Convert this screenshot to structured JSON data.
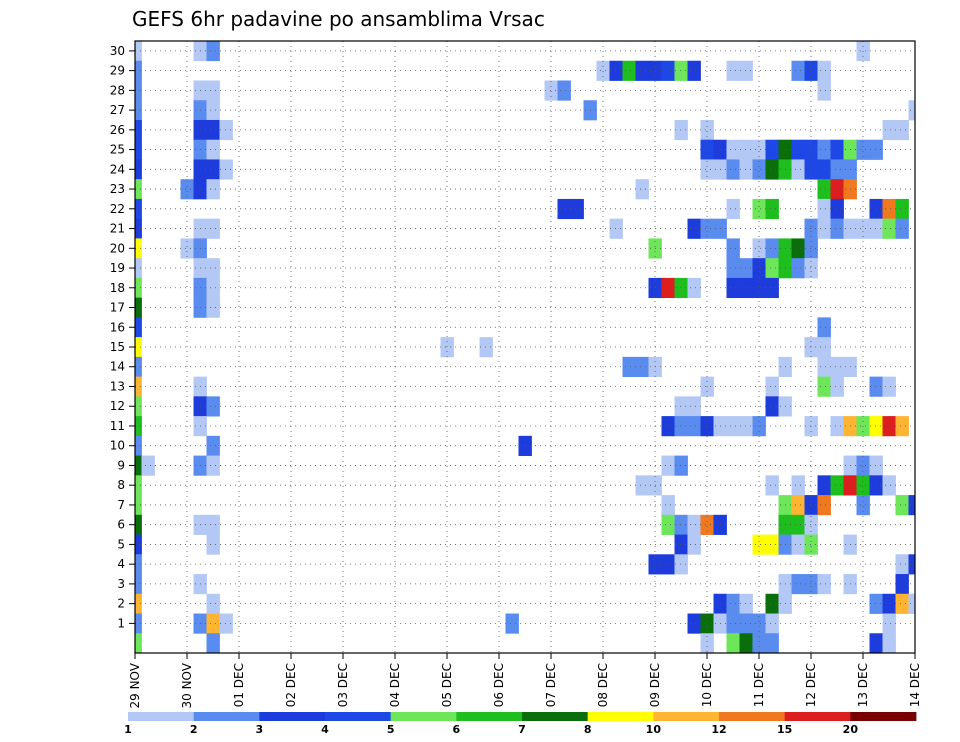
{
  "chart_data": {
    "type": "heatmap",
    "title": "GEFS 6hr padavine po ansamblima Vrsac",
    "x_tick_labels": [
      "29 NOV",
      "30 NOV",
      "01 DEC",
      "02 DEC",
      "03 DEC",
      "04 DEC",
      "05 DEC",
      "06 DEC",
      "07 DEC",
      "08 DEC",
      "09 DEC",
      "10 DEC",
      "11 DEC",
      "12 DEC",
      "13 DEC",
      "14 DEC"
    ],
    "y_tick_labels": [
      "1",
      "2",
      "3",
      "4",
      "5",
      "6",
      "7",
      "8",
      "9",
      "10",
      "11",
      "12",
      "13",
      "14",
      "15",
      "16",
      "17",
      "18",
      "19",
      "20",
      "21",
      "22",
      "23",
      "24",
      "25",
      "26",
      "27",
      "28",
      "29",
      "30"
    ],
    "ensemble_members": [
      0,
      30
    ],
    "time_steps_6h": 61,
    "colorbar": {
      "labels": [
        "1",
        "2",
        "3",
        "4",
        "5",
        "6",
        "7",
        "8",
        "10",
        "12",
        "15",
        "20"
      ],
      "colors": [
        "#b4c8f5",
        "#5a8cf0",
        "#1e3cdc",
        "#1e48e6",
        "#6ee65a",
        "#1ebe1e",
        "#0a6e0a",
        "#ffff00",
        "#ffb432",
        "#f0781e",
        "#dc1e1e",
        "#780000"
      ]
    },
    "grid": true,
    "cells": [
      {
        "m": 30,
        "t": [
          [
            0,
            1
          ],
          [
            5,
            1
          ],
          [
            6,
            2
          ],
          [
            56,
            1
          ]
        ]
      },
      {
        "m": 29,
        "t": [
          [
            0,
            2
          ],
          [
            36,
            1
          ],
          [
            37,
            3
          ],
          [
            38,
            6
          ],
          [
            39,
            3
          ],
          [
            40,
            3
          ],
          [
            41,
            4
          ],
          [
            42,
            5
          ],
          [
            43,
            3
          ],
          [
            46,
            1
          ],
          [
            47,
            1
          ],
          [
            51,
            2
          ],
          [
            52,
            4
          ],
          [
            53,
            1
          ]
        ]
      },
      {
        "m": 28,
        "t": [
          [
            0,
            2
          ],
          [
            5,
            1
          ],
          [
            6,
            1
          ],
          [
            32,
            1
          ],
          [
            33,
            2
          ],
          [
            53,
            1
          ]
        ]
      },
      {
        "m": 27,
        "t": [
          [
            0,
            2
          ],
          [
            5,
            2
          ],
          [
            6,
            1
          ],
          [
            35,
            2
          ],
          [
            60,
            1
          ]
        ]
      },
      {
        "m": 26,
        "t": [
          [
            0,
            4
          ],
          [
            5,
            3
          ],
          [
            6,
            3
          ],
          [
            7,
            1
          ],
          [
            42,
            1
          ],
          [
            44,
            1
          ],
          [
            58,
            1
          ],
          [
            59,
            1
          ]
        ]
      },
      {
        "m": 25,
        "t": [
          [
            0,
            4
          ],
          [
            5,
            2
          ],
          [
            6,
            1
          ],
          [
            44,
            4
          ],
          [
            45,
            3
          ],
          [
            46,
            1
          ],
          [
            47,
            1
          ],
          [
            48,
            1
          ],
          [
            49,
            4
          ],
          [
            50,
            7
          ],
          [
            51,
            4
          ],
          [
            52,
            4
          ],
          [
            53,
            2
          ],
          [
            54,
            4
          ],
          [
            55,
            5
          ],
          [
            56,
            2
          ],
          [
            57,
            2
          ]
        ]
      },
      {
        "m": 24,
        "t": [
          [
            0,
            3
          ],
          [
            5,
            3
          ],
          [
            6,
            3
          ],
          [
            7,
            1
          ],
          [
            44,
            1
          ],
          [
            45,
            1
          ],
          [
            46,
            2
          ],
          [
            47,
            1
          ],
          [
            48,
            2
          ],
          [
            49,
            7
          ],
          [
            50,
            6
          ],
          [
            51,
            1
          ],
          [
            52,
            4
          ],
          [
            53,
            4
          ],
          [
            54,
            2
          ],
          [
            55,
            2
          ]
        ]
      },
      {
        "m": 23,
        "t": [
          [
            0,
            5
          ],
          [
            4,
            2
          ],
          [
            5,
            3
          ],
          [
            6,
            1
          ],
          [
            39,
            1
          ],
          [
            53,
            6
          ],
          [
            54,
            11
          ],
          [
            55,
            10
          ]
        ]
      },
      {
        "m": 22,
        "t": [
          [
            0,
            4
          ],
          [
            33,
            3
          ],
          [
            34,
            3
          ],
          [
            46,
            1
          ],
          [
            48,
            5
          ],
          [
            49,
            6
          ],
          [
            53,
            1
          ],
          [
            54,
            3
          ],
          [
            57,
            3
          ],
          [
            58,
            10
          ],
          [
            59,
            6
          ]
        ]
      },
      {
        "m": 21,
        "t": [
          [
            0,
            3
          ],
          [
            5,
            1
          ],
          [
            6,
            1
          ],
          [
            37,
            1
          ],
          [
            43,
            3
          ],
          [
            44,
            2
          ],
          [
            45,
            2
          ],
          [
            52,
            2
          ],
          [
            53,
            1
          ],
          [
            54,
            2
          ],
          [
            55,
            1
          ],
          [
            56,
            1
          ],
          [
            57,
            1
          ],
          [
            58,
            5
          ],
          [
            59,
            2
          ]
        ]
      },
      {
        "m": 20,
        "t": [
          [
            0,
            8
          ],
          [
            4,
            1
          ],
          [
            5,
            2
          ],
          [
            40,
            5
          ],
          [
            46,
            2
          ],
          [
            48,
            1
          ],
          [
            49,
            2
          ],
          [
            50,
            6
          ],
          [
            51,
            7
          ],
          [
            52,
            2
          ]
        ]
      },
      {
        "m": 19,
        "t": [
          [
            0,
            1
          ],
          [
            5,
            1
          ],
          [
            6,
            1
          ],
          [
            46,
            2
          ],
          [
            47,
            2
          ],
          [
            48,
            3
          ],
          [
            49,
            5
          ],
          [
            50,
            6
          ],
          [
            51,
            2
          ],
          [
            52,
            1
          ]
        ]
      },
      {
        "m": 18,
        "t": [
          [
            0,
            5
          ],
          [
            5,
            2
          ],
          [
            6,
            1
          ],
          [
            40,
            3
          ],
          [
            41,
            11
          ],
          [
            42,
            6
          ],
          [
            43,
            1
          ],
          [
            46,
            3
          ],
          [
            47,
            3
          ],
          [
            48,
            3
          ],
          [
            49,
            3
          ]
        ]
      },
      {
        "m": 17,
        "t": [
          [
            0,
            7
          ],
          [
            5,
            2
          ],
          [
            6,
            1
          ]
        ]
      },
      {
        "m": 16,
        "t": [
          [
            0,
            4
          ],
          [
            53,
            2
          ]
        ]
      },
      {
        "m": 15,
        "t": [
          [
            0,
            8
          ],
          [
            24,
            1
          ],
          [
            27,
            1
          ],
          [
            52,
            1
          ],
          [
            53,
            1
          ]
        ]
      },
      {
        "m": 14,
        "t": [
          [
            0,
            2
          ],
          [
            38,
            2
          ],
          [
            39,
            2
          ],
          [
            40,
            1
          ],
          [
            50,
            1
          ],
          [
            53,
            1
          ],
          [
            54,
            1
          ],
          [
            55,
            1
          ]
        ]
      },
      {
        "m": 13,
        "t": [
          [
            0,
            9
          ],
          [
            5,
            1
          ],
          [
            44,
            1
          ],
          [
            49,
            1
          ],
          [
            53,
            5
          ],
          [
            54,
            1
          ],
          [
            57,
            2
          ],
          [
            58,
            1
          ]
        ]
      },
      {
        "m": 12,
        "t": [
          [
            0,
            5
          ],
          [
            5,
            3
          ],
          [
            6,
            2
          ],
          [
            42,
            1
          ],
          [
            43,
            1
          ],
          [
            49,
            3
          ],
          [
            50,
            1
          ]
        ]
      },
      {
        "m": 11,
        "t": [
          [
            0,
            6
          ],
          [
            5,
            1
          ],
          [
            41,
            3
          ],
          [
            42,
            2
          ],
          [
            43,
            2
          ],
          [
            44,
            3
          ],
          [
            45,
            1
          ],
          [
            46,
            1
          ],
          [
            47,
            1
          ],
          [
            48,
            2
          ],
          [
            52,
            1
          ],
          [
            54,
            1
          ],
          [
            55,
            9
          ],
          [
            56,
            5
          ],
          [
            57,
            8
          ],
          [
            58,
            11
          ],
          [
            59,
            9
          ]
        ]
      },
      {
        "m": 10,
        "t": [
          [
            0,
            2
          ],
          [
            6,
            2
          ],
          [
            30,
            3
          ]
        ]
      },
      {
        "m": 9,
        "t": [
          [
            0,
            7
          ],
          [
            1,
            1
          ],
          [
            5,
            2
          ],
          [
            6,
            1
          ],
          [
            41,
            1
          ],
          [
            42,
            2
          ],
          [
            55,
            1
          ],
          [
            56,
            2
          ],
          [
            57,
            1
          ]
        ]
      },
      {
        "m": 8,
        "t": [
          [
            0,
            5
          ],
          [
            39,
            1
          ],
          [
            40,
            1
          ],
          [
            49,
            1
          ],
          [
            51,
            1
          ],
          [
            53,
            3
          ],
          [
            54,
            6
          ],
          [
            55,
            11
          ],
          [
            56,
            6
          ],
          [
            57,
            3
          ],
          [
            58,
            1
          ]
        ]
      },
      {
        "m": 7,
        "t": [
          [
            0,
            5
          ],
          [
            41,
            1
          ],
          [
            50,
            5
          ],
          [
            51,
            9
          ],
          [
            52,
            3
          ],
          [
            53,
            10
          ],
          [
            56,
            2
          ],
          [
            59,
            5
          ],
          [
            60,
            3
          ]
        ]
      },
      {
        "m": 6,
        "t": [
          [
            0,
            7
          ],
          [
            5,
            1
          ],
          [
            6,
            1
          ],
          [
            41,
            5
          ],
          [
            42,
            2
          ],
          [
            43,
            1
          ],
          [
            44,
            10
          ],
          [
            45,
            3
          ],
          [
            50,
            6
          ],
          [
            51,
            6
          ],
          [
            52,
            1
          ]
        ]
      },
      {
        "m": 5,
        "t": [
          [
            0,
            3
          ],
          [
            6,
            1
          ],
          [
            42,
            3
          ],
          [
            43,
            1
          ],
          [
            48,
            8
          ],
          [
            49,
            8
          ],
          [
            50,
            2
          ],
          [
            51,
            1
          ],
          [
            52,
            5
          ],
          [
            55,
            1
          ]
        ]
      },
      {
        "m": 4,
        "t": [
          [
            0,
            2
          ],
          [
            40,
            3
          ],
          [
            41,
            3
          ],
          [
            42,
            1
          ],
          [
            59,
            1
          ],
          [
            60,
            3
          ]
        ]
      },
      {
        "m": 3,
        "t": [
          [
            0,
            2
          ],
          [
            5,
            1
          ],
          [
            50,
            1
          ],
          [
            51,
            2
          ],
          [
            52,
            2
          ],
          [
            53,
            1
          ],
          [
            55,
            1
          ],
          [
            59,
            3
          ]
        ]
      },
      {
        "m": 2,
        "t": [
          [
            0,
            9
          ],
          [
            6,
            1
          ],
          [
            45,
            3
          ],
          [
            46,
            2
          ],
          [
            47,
            1
          ],
          [
            49,
            7
          ],
          [
            50,
            1
          ],
          [
            57,
            2
          ],
          [
            58,
            3
          ],
          [
            59,
            9
          ],
          [
            60,
            1
          ]
        ]
      },
      {
        "m": 1,
        "t": [
          [
            0,
            2
          ],
          [
            5,
            2
          ],
          [
            6,
            9
          ],
          [
            7,
            1
          ],
          [
            29,
            2
          ],
          [
            43,
            3
          ],
          [
            44,
            7
          ],
          [
            45,
            1
          ],
          [
            46,
            2
          ],
          [
            47,
            2
          ],
          [
            48,
            2
          ],
          [
            49,
            1
          ],
          [
            58,
            1
          ]
        ]
      },
      {
        "m": 0,
        "t": [
          [
            0,
            5
          ],
          [
            6,
            2
          ],
          [
            44,
            1
          ],
          [
            46,
            5
          ],
          [
            47,
            7
          ],
          [
            48,
            2
          ],
          [
            49,
            2
          ],
          [
            57,
            3
          ],
          [
            58,
            1
          ]
        ]
      }
    ]
  }
}
